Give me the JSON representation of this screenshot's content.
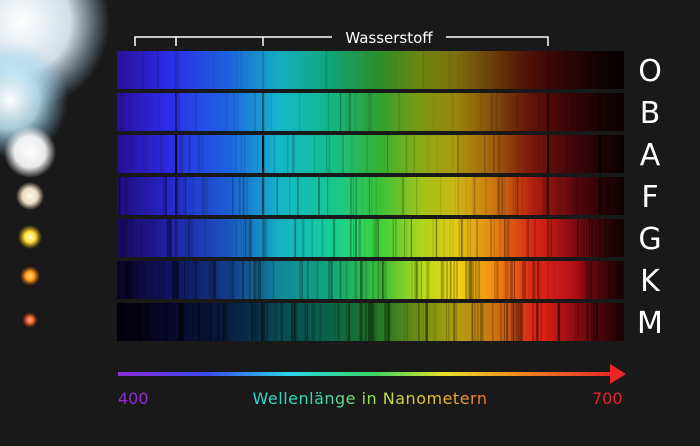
{
  "bracket_label": "Wasserstoff",
  "axis": {
    "label": "Wellenlänge in Nanometern",
    "min_label": "400",
    "max_label": "700",
    "min_color": "#8e2ad6",
    "max_color": "#e8262a"
  },
  "spectral_classes": [
    {
      "letter": "O",
      "star_color": "#dff0ff"
    },
    {
      "letter": "B",
      "star_color": "#bfe4f7"
    },
    {
      "letter": "A",
      "star_color": "#ffffff"
    },
    {
      "letter": "F",
      "star_color": "#fff6e0"
    },
    {
      "letter": "G",
      "star_color": "#ffe23a"
    },
    {
      "letter": "K",
      "star_color": "#ff9e1e"
    },
    {
      "letter": "M",
      "star_color": "#ff6a3a"
    }
  ]
}
